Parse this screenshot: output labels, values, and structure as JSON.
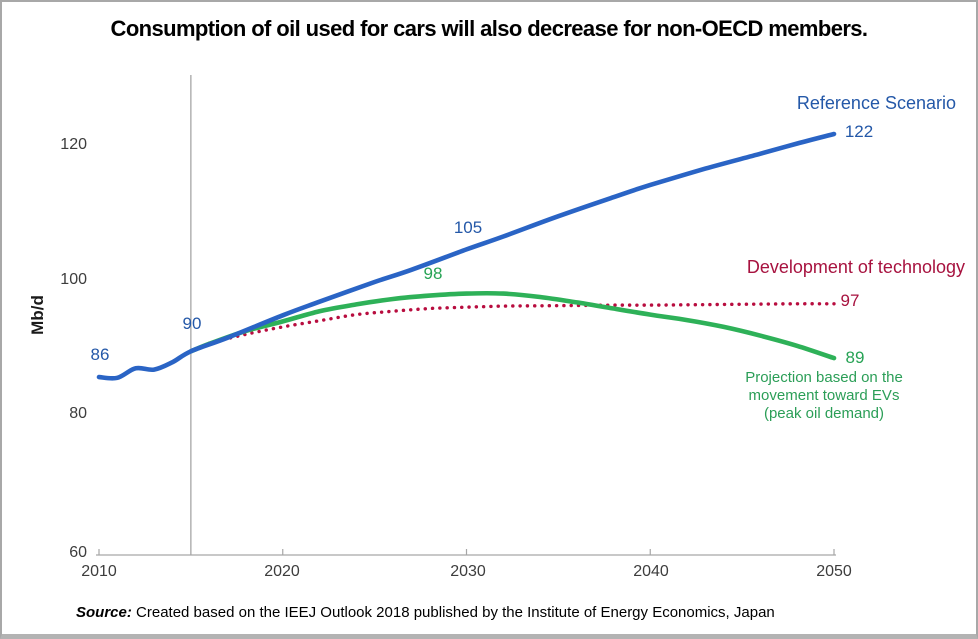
{
  "header": {
    "title": "Consumption of oil used for cars will also decrease for non-OECD members."
  },
  "colors": {
    "reference_line": "#2a64c5",
    "ev_line": "#2eb158",
    "technology_dots": "#b80d3f",
    "blue_label_text": "#2458a8",
    "green_label_text": "#27a355",
    "crimson_label_text": "#a7123f",
    "axis_gray": "#a6a6a6"
  },
  "chart_data": {
    "type": "line",
    "title": "Consumption of oil used for cars will also decrease for non-OECD members.",
    "xlabel": "",
    "ylabel": "Mb/d",
    "xlim": [
      2010,
      2050
    ],
    "ylim": [
      60,
      130
    ],
    "grid": false,
    "x_ticks": [
      "2010",
      "2020",
      "2030",
      "2040",
      "2050"
    ],
    "y_ticks": [
      "120",
      "100",
      "80",
      "60"
    ],
    "marker_year": 2015,
    "series": [
      {
        "name": "Reference Scenario",
        "color": "#2a64c5",
        "style": "solid",
        "points": [
          [
            2010,
            86.2
          ],
          [
            2011,
            86.1
          ],
          [
            2012,
            87.5
          ],
          [
            2013,
            87.3
          ],
          [
            2014,
            88.4
          ],
          [
            2015,
            90
          ],
          [
            2017,
            92
          ],
          [
            2020,
            95.3
          ],
          [
            2022,
            97.3
          ],
          [
            2025,
            100.2
          ],
          [
            2027,
            102
          ],
          [
            2030,
            105
          ],
          [
            2032,
            106.9
          ],
          [
            2035,
            109.9
          ],
          [
            2038,
            112.7
          ],
          [
            2040,
            114.5
          ],
          [
            2043,
            116.9
          ],
          [
            2046,
            119.1
          ],
          [
            2048,
            120.6
          ],
          [
            2050,
            122
          ]
        ]
      },
      {
        "name": "Projection based on the movement toward EVs (peak oil demand)",
        "color": "#2eb158",
        "style": "solid",
        "points": [
          [
            2015,
            90
          ],
          [
            2016,
            91.1
          ],
          [
            2018,
            93
          ],
          [
            2020,
            94.4
          ],
          [
            2022,
            95.9
          ],
          [
            2024,
            96.9
          ],
          [
            2026,
            97.7
          ],
          [
            2028,
            98.2
          ],
          [
            2030,
            98.5
          ],
          [
            2032,
            98.5
          ],
          [
            2034,
            98
          ],
          [
            2036,
            97.2
          ],
          [
            2038,
            96.3
          ],
          [
            2040,
            95.4
          ],
          [
            2042,
            94.6
          ],
          [
            2044,
            93.6
          ],
          [
            2046,
            92.3
          ],
          [
            2048,
            90.8
          ],
          [
            2050,
            89
          ]
        ]
      },
      {
        "name": "Development of technology",
        "color": "#b80d3f",
        "style": "dotted",
        "points": [
          [
            2016,
            91.2
          ],
          [
            2018,
            92.5
          ],
          [
            2020,
            93.6
          ],
          [
            2022,
            94.5
          ],
          [
            2024,
            95.4
          ],
          [
            2026,
            95.9
          ],
          [
            2028,
            96.3
          ],
          [
            2030,
            96.5
          ],
          [
            2032,
            96.65
          ],
          [
            2034,
            96.7
          ],
          [
            2036,
            96.75
          ],
          [
            2038,
            96.8
          ],
          [
            2040,
            96.8
          ],
          [
            2042,
            96.85
          ],
          [
            2044,
            96.9
          ],
          [
            2046,
            96.95
          ],
          [
            2048,
            97
          ],
          [
            2050,
            97
          ]
        ]
      }
    ],
    "point_labels": {
      "ref_2010": "86",
      "ref_2015": "90",
      "ref_2030": "105",
      "ref_2050": "122",
      "ev_peak": "98",
      "ev_2050": "89",
      "tech_2050": "97"
    },
    "series_labels": {
      "reference": "Reference Scenario",
      "technology": "Development of technology",
      "ev_note": [
        "Projection based on the",
        "movement toward EVs",
        "(peak oil demand)"
      ]
    }
  },
  "footer": {
    "source_label": "Source:",
    "source_text": " Created based on the IEEJ Outlook 2018 published by the Institute  of Energy Economics, Japan"
  }
}
